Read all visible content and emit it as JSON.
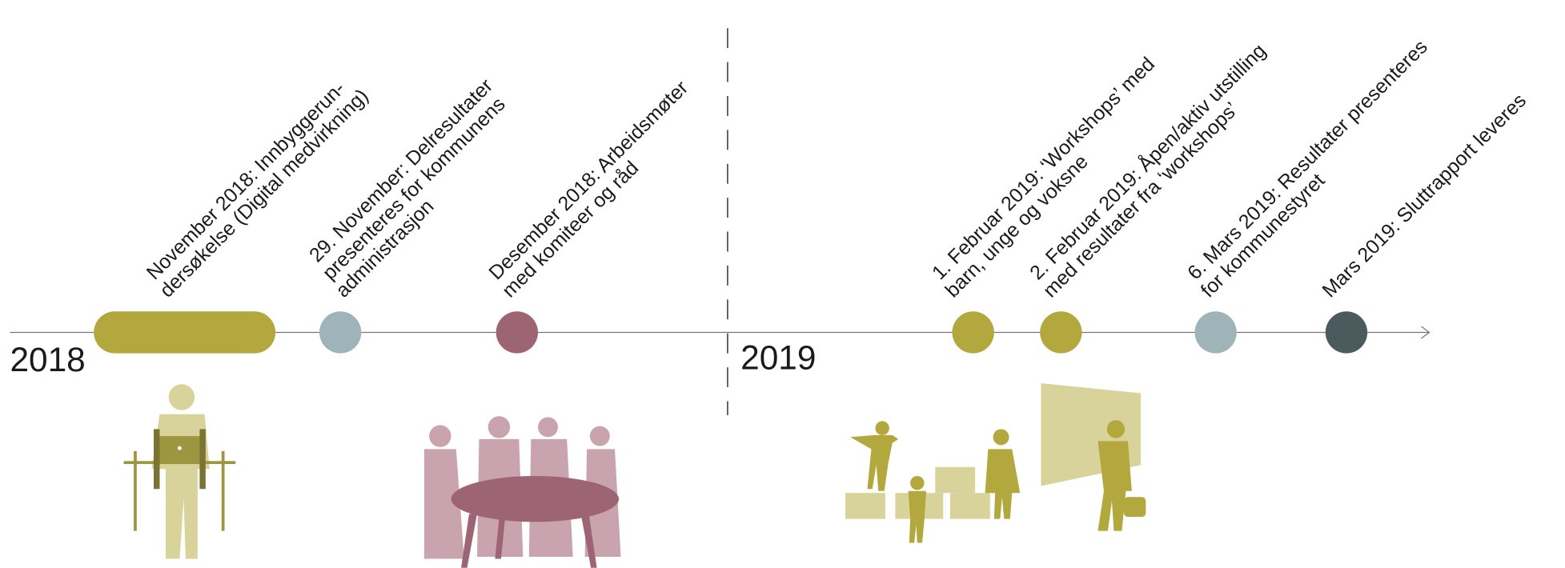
{
  "years": [
    "2018",
    "2019"
  ],
  "events": [
    {
      "lines": [
        "November 2018: Innbyggerun-",
        "dersøkelse (Digital medvirkning)"
      ],
      "color": "#b3a83e"
    },
    {
      "lines": [
        "29. November: Delresultater",
        "presenteres for kommunens",
        "administrasjon"
      ],
      "color": "#9fb4b8"
    },
    {
      "lines": [
        "Desember 2018: Arbeidsmøter",
        "med komiteer og råd"
      ],
      "color": "#9d6574"
    },
    {
      "lines": [
        "1. Februar 2019: ‘Workshops’ med",
        "barn, unge og voksne"
      ],
      "color": "#b3a83e"
    },
    {
      "lines": [
        "2. Februar 2019: Åpen/aktiv utstilling",
        "med resultater fra ‘workshops’"
      ],
      "color": "#b3a83e"
    },
    {
      "lines": [
        "6. Mars 2019: Resultater presenteres",
        "for kommunestyret"
      ],
      "color": "#9fb4b8"
    },
    {
      "lines": [
        "Mars 2019: Sluttrapport leveres"
      ],
      "color": "#4b5a5c"
    }
  ]
}
